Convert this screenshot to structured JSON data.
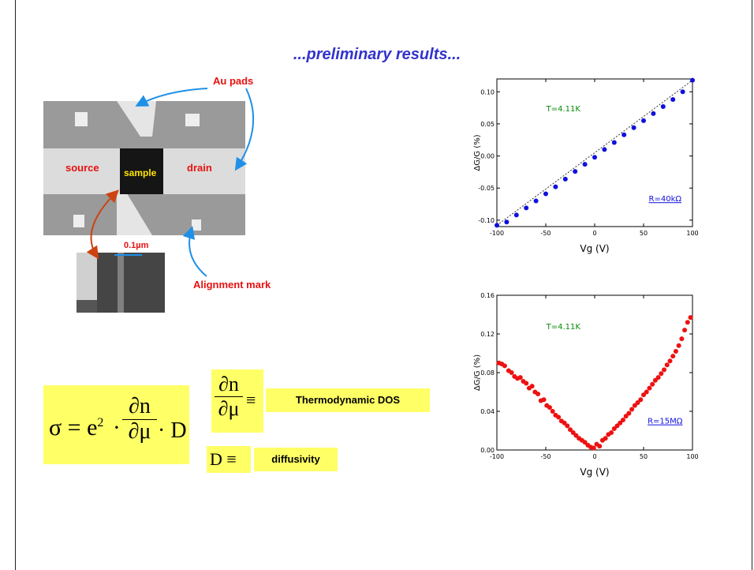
{
  "title": "...preliminary results...",
  "annotations": {
    "au_pads": "Au pads",
    "source": "source",
    "sample": "sample",
    "drain": "drain",
    "scale": "0.1µm",
    "alignment_mark": "Alignment mark"
  },
  "formulas": {
    "main_lhs": "σ = e",
    "main_sup": "2",
    "dos_label": "Thermodynamic DOS",
    "diff_lhs": "D ≡",
    "diff_label": "diffusivity",
    "partial_n": "∂n",
    "partial_mu": "∂μ",
    "equiv": "≡",
    "dot_D": "· D",
    "dot": "·"
  },
  "chart_data": [
    {
      "type": "scatter",
      "color": "#1010dd",
      "ylabel": "ΔG/G (%)",
      "xlabel": "Vg (V)",
      "annotation_T": "T=4.11K",
      "annotation_R": "R=40kΩ",
      "xlim": [
        -100,
        100
      ],
      "ylim": [
        -0.11,
        0.12
      ],
      "xticks": [
        -100,
        -50,
        0,
        50,
        100
      ],
      "yticks": [
        -0.1,
        -0.05,
        0.0,
        0.05,
        0.1
      ],
      "ytick_labels": [
        "-0.10",
        "-0.05",
        "0.00",
        "0.05",
        "0.10"
      ],
      "x": [
        -100,
        -90,
        -80,
        -70,
        -60,
        -50,
        -40,
        -30,
        -20,
        -10,
        0,
        10,
        20,
        30,
        40,
        50,
        60,
        70,
        80,
        90,
        100
      ],
      "y": [
        -0.108,
        -0.103,
        -0.092,
        -0.081,
        -0.07,
        -0.059,
        -0.048,
        -0.036,
        -0.024,
        -0.013,
        -0.002,
        0.01,
        0.021,
        0.033,
        0.044,
        0.055,
        0.066,
        0.077,
        0.088,
        0.1,
        0.118
      ]
    },
    {
      "type": "scatter",
      "color": "#ee1111",
      "ylabel": "ΔG/G (%)",
      "xlabel": "Vg (V)",
      "annotation_T": "T=4.11K",
      "annotation_R": "R=15MΩ",
      "xlim": [
        -100,
        100
      ],
      "ylim": [
        0.0,
        0.16
      ],
      "xticks": [
        -100,
        -50,
        0,
        50,
        100
      ],
      "yticks": [
        0.0,
        0.04,
        0.08,
        0.12,
        0.16
      ],
      "ytick_labels": [
        "0.00",
        "0.04",
        "0.08",
        "0.12",
        "0.16"
      ],
      "x": [
        -98,
        -95,
        -92,
        -88,
        -85,
        -82,
        -79,
        -76,
        -73,
        -70,
        -67,
        -64,
        -61,
        -58,
        -55,
        -52,
        -49,
        -46,
        -43,
        -40,
        -37,
        -34,
        -31,
        -28,
        -25,
        -22,
        -19,
        -16,
        -13,
        -10,
        -7,
        -4,
        -1,
        2,
        5,
        8,
        11,
        14,
        17,
        20,
        23,
        26,
        29,
        32,
        35,
        38,
        41,
        44,
        47,
        50,
        53,
        56,
        59,
        62,
        65,
        68,
        71,
        74,
        77,
        80,
        83,
        86,
        89,
        92,
        95,
        98
      ],
      "y": [
        0.09,
        0.089,
        0.087,
        0.082,
        0.08,
        0.076,
        0.074,
        0.075,
        0.071,
        0.069,
        0.064,
        0.066,
        0.06,
        0.058,
        0.051,
        0.052,
        0.046,
        0.044,
        0.04,
        0.036,
        0.034,
        0.03,
        0.028,
        0.025,
        0.021,
        0.018,
        0.015,
        0.012,
        0.01,
        0.008,
        0.005,
        0.003,
        0.002,
        0.006,
        0.004,
        0.01,
        0.012,
        0.016,
        0.018,
        0.022,
        0.025,
        0.028,
        0.031,
        0.035,
        0.038,
        0.042,
        0.046,
        0.049,
        0.052,
        0.057,
        0.06,
        0.064,
        0.068,
        0.072,
        0.075,
        0.079,
        0.083,
        0.088,
        0.092,
        0.097,
        0.102,
        0.108,
        0.115,
        0.124,
        0.132,
        0.137
      ]
    }
  ]
}
